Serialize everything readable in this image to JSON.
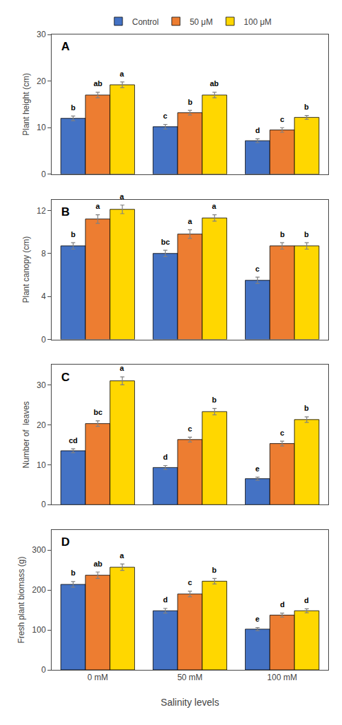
{
  "chart_data": [
    {
      "type": "bar",
      "ylabel": "Plant height (cm)",
      "annotations": [
        "A"
      ],
      "categories": [
        "0 mM",
        "50 mM",
        "100 mM"
      ],
      "series": [
        {
          "name": "Control",
          "color": "#4472C4",
          "values": [
            12.0,
            10.2,
            7.2
          ],
          "errors": [
            0.5,
            0.5,
            0.4
          ],
          "letters": [
            "b",
            "c",
            "d"
          ]
        },
        {
          "name": "50 μM",
          "color": "#ED7D31",
          "values": [
            17.0,
            13.2,
            9.5
          ],
          "errors": [
            0.6,
            0.5,
            0.5
          ],
          "letters": [
            "ab",
            "b",
            "c"
          ]
        },
        {
          "name": "100 μM",
          "color": "#FFD700",
          "values": [
            19.2,
            17.0,
            12.2
          ],
          "errors": [
            0.6,
            0.6,
            0.4
          ],
          "letters": [
            "a",
            "ab",
            "b"
          ]
        }
      ],
      "ylim": [
        0,
        30
      ],
      "yticks": [
        0,
        10,
        20,
        30
      ],
      "grid": false,
      "legend": "top",
      "tick_labels": "y"
    },
    {
      "type": "bar",
      "ylabel": "Plant canopy (cm)",
      "annotations": [
        "B"
      ],
      "categories": [
        "0 mM",
        "50 mM",
        "100 mM"
      ],
      "series": [
        {
          "name": "Control",
          "color": "#4472C4",
          "values": [
            8.7,
            8.0,
            5.5
          ],
          "errors": [
            0.3,
            0.3,
            0.3
          ],
          "letters": [
            "b",
            "bc",
            "c"
          ]
        },
        {
          "name": "50 μM",
          "color": "#ED7D31",
          "values": [
            11.2,
            9.8,
            8.7
          ],
          "errors": [
            0.4,
            0.4,
            0.3
          ],
          "letters": [
            "a",
            "a",
            "b"
          ]
        },
        {
          "name": "100 μM",
          "color": "#FFD700",
          "values": [
            12.1,
            11.3,
            8.7
          ],
          "errors": [
            0.4,
            0.3,
            0.3
          ],
          "letters": [
            "a",
            "a",
            "b"
          ]
        }
      ],
      "ylim": [
        0,
        13
      ],
      "yticks": [
        0,
        4,
        8,
        12
      ],
      "grid": false,
      "tick_labels": "y"
    },
    {
      "type": "bar",
      "ylabel": "Number of  leaves",
      "annotations": [
        "C"
      ],
      "categories": [
        "0 mM",
        "50 mM",
        "100 mM"
      ],
      "series": [
        {
          "name": "Control",
          "color": "#4472C4",
          "values": [
            13.5,
            9.3,
            6.5
          ],
          "errors": [
            0.5,
            0.5,
            0.4
          ],
          "letters": [
            "cd",
            "d",
            "e"
          ]
        },
        {
          "name": "50 μM",
          "color": "#ED7D31",
          "values": [
            20.3,
            16.3,
            15.3
          ],
          "errors": [
            0.7,
            0.6,
            0.6
          ],
          "letters": [
            "bc",
            "c",
            "c"
          ]
        },
        {
          "name": "100 μM",
          "color": "#FFD700",
          "values": [
            31.0,
            23.3,
            21.3
          ],
          "errors": [
            1.0,
            0.8,
            0.7
          ],
          "letters": [
            "a",
            "b",
            "b"
          ]
        }
      ],
      "ylim": [
        0,
        35
      ],
      "yticks": [
        0,
        10,
        20,
        30
      ],
      "grid": false,
      "tick_labels": "y"
    },
    {
      "type": "bar",
      "ylabel": "Fresh plant biomass (g)",
      "xlabel": "Salinity levels",
      "annotations": [
        "D"
      ],
      "categories": [
        "0 mM",
        "50 mM",
        "100 mM"
      ],
      "series": [
        {
          "name": "Control",
          "color": "#4472C4",
          "values": [
            214.0,
            148.0,
            102.0
          ],
          "errors": [
            7.0,
            6.0,
            4.0
          ],
          "letters": [
            "b",
            "d",
            "e"
          ]
        },
        {
          "name": "50 μM",
          "color": "#ED7D31",
          "values": [
            237.0,
            190.0,
            137.0
          ],
          "errors": [
            8.0,
            7.0,
            5.0
          ],
          "letters": [
            "ab",
            "c",
            "d"
          ]
        },
        {
          "name": "100 μM",
          "color": "#FFD700",
          "values": [
            257.0,
            222.0,
            148.0
          ],
          "errors": [
            8.0,
            7.0,
            5.0
          ],
          "letters": [
            "a",
            "b",
            "d"
          ]
        }
      ],
      "ylim": [
        0,
        350
      ],
      "yticks": [
        0,
        100,
        200,
        300
      ],
      "grid": false
    }
  ]
}
